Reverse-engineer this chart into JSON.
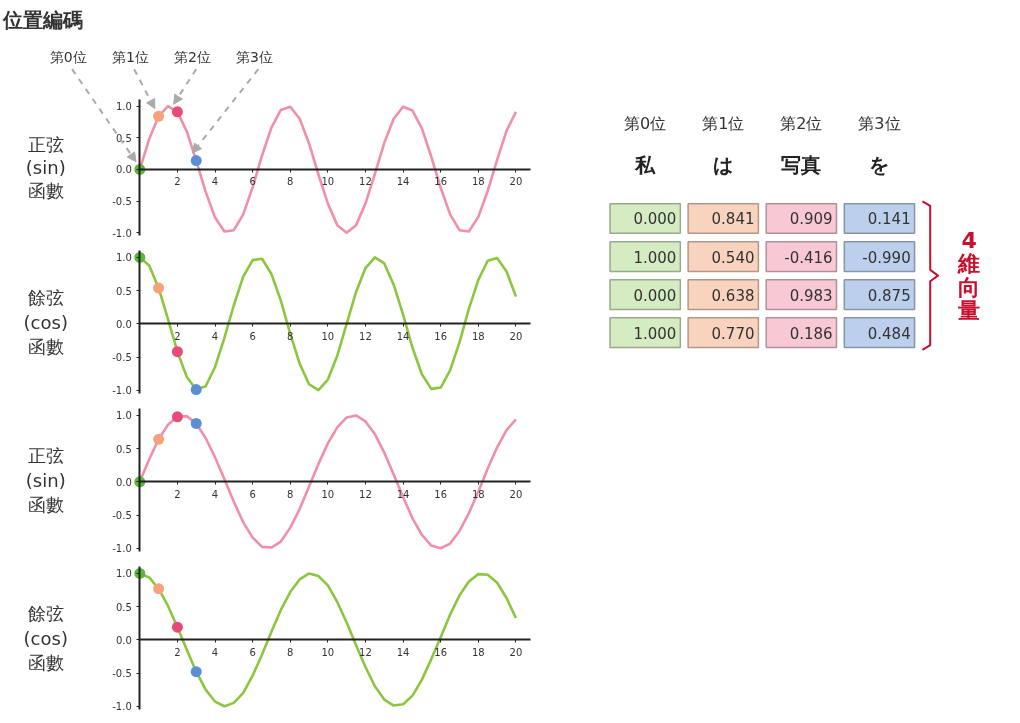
{
  "chart_data": [
    {
      "type": "line",
      "title": "位置編碼",
      "ylabel": "正弦\n(sin)\n函數",
      "xlim": [
        0,
        20.8
      ],
      "ylim": [
        -1.05,
        1.1
      ],
      "xticks": [
        2,
        4,
        6,
        8,
        10,
        12,
        14,
        16,
        18,
        20
      ],
      "yticks": [
        {
          "value": -1,
          "label": "-1.0"
        },
        {
          "value": -0.5,
          "label": "-0.5"
        },
        {
          "value": 0,
          "label": "0.0"
        },
        {
          "value": 0.5,
          "label": "0.5"
        },
        {
          "value": 1,
          "label": "1.0"
        }
      ],
      "x": [
        0,
        0.5,
        1,
        1.5,
        2,
        2.5,
        3,
        3.5,
        4,
        4.5,
        5,
        5.5,
        6,
        6.5,
        7,
        7.5,
        8,
        8.5,
        9,
        9.5,
        10,
        10.5,
        11,
        11.5,
        12,
        12.5,
        13,
        13.5,
        14,
        14.5,
        15,
        15.5,
        16,
        16.5,
        17,
        17.5,
        18,
        18.5,
        19,
        19.5,
        20
      ],
      "series": [
        {
          "color": "#ef8fa8",
          "values": [
            0,
            0.48,
            0.84,
            1.0,
            0.91,
            0.6,
            0.14,
            -0.35,
            -0.76,
            -0.98,
            -0.96,
            -0.71,
            -0.28,
            0.22,
            0.66,
            0.94,
            0.99,
            0.8,
            0.41,
            -0.08,
            -0.54,
            -0.88,
            -1.0,
            -0.88,
            -0.54,
            -0.07,
            0.42,
            0.8,
            0.99,
            0.93,
            0.65,
            0.2,
            -0.29,
            -0.71,
            -0.96,
            -0.98,
            -0.75,
            -0.34,
            0.15,
            0.61,
            0.91
          ]
        },
        {
          "type": "scatter",
          "marker": "circle",
          "x": [
            0,
            1,
            2,
            3
          ],
          "values": [
            0,
            0.84,
            0.91,
            0.14
          ],
          "colors": [
            "#5db53a",
            "#f5a37c",
            "#e84a79",
            "#5b8ed6"
          ]
        }
      ],
      "annotations": [
        {
          "text": "第0位",
          "x": 0,
          "y": 0
        },
        {
          "text": "第1位",
          "x": 1,
          "y": 0.84
        },
        {
          "text": "第2位",
          "x": 2,
          "y": 0.91
        },
        {
          "text": "第3位",
          "x": 3,
          "y": 0.14
        }
      ]
    },
    {
      "type": "line",
      "ylabel": "餘弦\n(cos)\n函數",
      "xlim": [
        0,
        20.8
      ],
      "ylim": [
        -1.05,
        1.1
      ],
      "xticks": [
        2,
        4,
        6,
        8,
        10,
        12,
        14,
        16,
        18,
        20
      ],
      "yticks": [
        {
          "value": -1,
          "label": "-1.0"
        },
        {
          "value": -0.5,
          "label": "-0.5"
        },
        {
          "value": 0,
          "label": "0.0"
        },
        {
          "value": 0.5,
          "label": "0.5"
        },
        {
          "value": 1,
          "label": "1.0"
        }
      ],
      "x": [
        0,
        0.5,
        1,
        1.5,
        2,
        2.5,
        3,
        3.5,
        4,
        4.5,
        5,
        5.5,
        6,
        6.5,
        7,
        7.5,
        8,
        8.5,
        9,
        9.5,
        10,
        10.5,
        11,
        11.5,
        12,
        12.5,
        13,
        13.5,
        14,
        14.5,
        15,
        15.5,
        16,
        16.5,
        17,
        17.5,
        18,
        18.5,
        19,
        19.5,
        20
      ],
      "series": [
        {
          "color": "#8cc63f",
          "values": [
            1,
            0.88,
            0.54,
            0.07,
            -0.42,
            -0.8,
            -0.99,
            -0.94,
            -0.65,
            -0.21,
            0.28,
            0.71,
            0.96,
            0.98,
            0.75,
            0.35,
            -0.15,
            -0.6,
            -0.91,
            -1.0,
            -0.84,
            -0.48,
            0.0,
            0.48,
            0.84,
            1.0,
            0.91,
            0.59,
            0.14,
            -0.36,
            -0.76,
            -0.98,
            -0.96,
            -0.7,
            -0.28,
            0.23,
            0.66,
            0.95,
            0.99,
            0.79,
            0.41
          ]
        },
        {
          "type": "scatter",
          "marker": "circle",
          "x": [
            0,
            1,
            2,
            3
          ],
          "values": [
            1,
            0.54,
            -0.42,
            -0.99
          ],
          "colors": [
            "#5db53a",
            "#f5a37c",
            "#e84a79",
            "#5b8ed6"
          ]
        }
      ]
    },
    {
      "type": "line",
      "ylabel": "正弦\n(sin)\n函數",
      "xlim": [
        0,
        20.8
      ],
      "ylim": [
        -1.05,
        1.1
      ],
      "xticks": [
        2,
        4,
        6,
        8,
        10,
        12,
        14,
        16,
        18,
        20
      ],
      "yticks": [
        {
          "value": -1,
          "label": "-1.0"
        },
        {
          "value": -0.5,
          "label": "-0.5"
        },
        {
          "value": 0,
          "label": "0.0"
        },
        {
          "value": 0.5,
          "label": "0.5"
        },
        {
          "value": 1,
          "label": "1.0"
        }
      ],
      "x": [
        0,
        0.5,
        1,
        1.5,
        2,
        2.5,
        3,
        3.5,
        4,
        4.5,
        5,
        5.5,
        6,
        6.5,
        7,
        7.5,
        8,
        8.5,
        9,
        9.5,
        10,
        10.5,
        11,
        11.5,
        12,
        12.5,
        13,
        13.5,
        14,
        14.5,
        15,
        15.5,
        16,
        16.5,
        17,
        17.5,
        18,
        18.5,
        19,
        19.5,
        20
      ],
      "series": [
        {
          "color": "#ef8fa8",
          "values": [
            0,
            0.34,
            0.64,
            0.86,
            0.98,
            0.99,
            0.88,
            0.66,
            0.37,
            0.04,
            -0.3,
            -0.61,
            -0.84,
            -0.98,
            -0.99,
            -0.9,
            -0.69,
            -0.41,
            -0.07,
            0.27,
            0.58,
            0.82,
            0.97,
            1.0,
            0.91,
            0.72,
            0.44,
            0.11,
            -0.23,
            -0.55,
            -0.8,
            -0.96,
            -1.0,
            -0.93,
            -0.74,
            -0.47,
            -0.15,
            0.2,
            0.52,
            0.78,
            0.94
          ]
        },
        {
          "type": "scatter",
          "marker": "circle",
          "x": [
            0,
            1,
            2,
            3
          ],
          "values": [
            0,
            0.64,
            0.98,
            0.88
          ],
          "colors": [
            "#5db53a",
            "#f5a37c",
            "#e84a79",
            "#5b8ed6"
          ]
        }
      ]
    },
    {
      "type": "line",
      "ylabel": "餘弦\n(cos)\n函數",
      "xlim": [
        0,
        20.8
      ],
      "ylim": [
        -1.05,
        1.1
      ],
      "xticks": [
        2,
        4,
        6,
        8,
        10,
        12,
        14,
        16,
        18,
        20
      ],
      "yticks": [
        {
          "value": -1,
          "label": "-1.0"
        },
        {
          "value": -0.5,
          "label": "-0.5"
        },
        {
          "value": 0,
          "label": "0.0"
        },
        {
          "value": 0.5,
          "label": "0.5"
        },
        {
          "value": 1,
          "label": "1.0"
        }
      ],
      "x": [
        0,
        0.5,
        1,
        1.5,
        2,
        2.5,
        3,
        3.5,
        4,
        4.5,
        5,
        5.5,
        6,
        6.5,
        7,
        7.5,
        8,
        8.5,
        9,
        9.5,
        10,
        10.5,
        11,
        11.5,
        12,
        12.5,
        13,
        13.5,
        14,
        14.5,
        15,
        15.5,
        16,
        16.5,
        17,
        17.5,
        18,
        18.5,
        19,
        19.5,
        20
      ],
      "series": [
        {
          "color": "#8cc63f",
          "values": [
            1,
            0.94,
            0.77,
            0.51,
            0.19,
            -0.15,
            -0.48,
            -0.75,
            -0.93,
            -1.0,
            -0.95,
            -0.8,
            -0.54,
            -0.22,
            0.12,
            0.45,
            0.72,
            0.91,
            1.0,
            0.96,
            0.82,
            0.57,
            0.26,
            -0.08,
            -0.41,
            -0.7,
            -0.9,
            -0.99,
            -0.97,
            -0.84,
            -0.6,
            -0.29,
            0.04,
            0.38,
            0.67,
            0.88,
            0.99,
            0.98,
            0.86,
            0.63,
            0.33
          ]
        },
        {
          "type": "scatter",
          "marker": "circle",
          "x": [
            0,
            1,
            2,
            3
          ],
          "values": [
            1,
            0.77,
            0.19,
            -0.48
          ],
          "colors": [
            "#5db53a",
            "#f5a37c",
            "#e84a79",
            "#5b8ed6"
          ]
        }
      ]
    },
    {
      "type": "other",
      "categories": [
        "第0位",
        "第1位",
        "第2位",
        "第3位"
      ],
      "series": [
        {
          "values": [
            0.0,
            0.841,
            0.909,
            0.141
          ],
          "value_labels": [
            "0.000",
            "0.841",
            "0.909",
            "0.141"
          ],
          "colors": [
            "#d5ebc2",
            "#f9d3be",
            "#f8c8d5",
            "#bccfec"
          ]
        },
        {
          "values": [
            1.0,
            0.54,
            -0.416,
            -0.99
          ],
          "value_labels": [
            "1.000",
            "0.540",
            "-0.416",
            "-0.990"
          ],
          "colors": [
            "#d5ebc2",
            "#f9d3be",
            "#f8c8d5",
            "#bccfec"
          ]
        },
        {
          "values": [
            0.0,
            0.638,
            0.983,
            0.875
          ],
          "value_labels": [
            "0.000",
            "0.638",
            "0.983",
            "0.875"
          ],
          "colors": [
            "#d5ebc2",
            "#f9d3be",
            "#f8c8d5",
            "#bccfec"
          ]
        },
        {
          "values": [
            1.0,
            0.77,
            0.186,
            0.484
          ],
          "value_labels": [
            "1.000",
            "0.770",
            "0.186",
            "0.484"
          ],
          "colors": [
            "#d5ebc2",
            "#f9d3be",
            "#f8c8d5",
            "#bccfec"
          ]
        }
      ],
      "annotations": [
        "私",
        "は",
        "写真",
        "を",
        "4維向量"
      ]
    }
  ]
}
